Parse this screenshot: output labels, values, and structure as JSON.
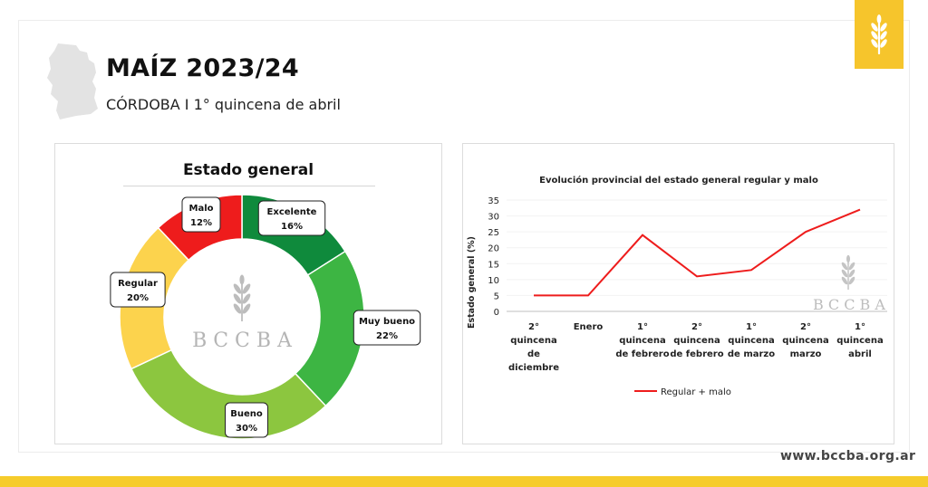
{
  "header": {
    "title": "MAÍZ 2023/24",
    "subtitle": "CÓRDOBA I 1° quincena de abril"
  },
  "footer": {
    "website": "www.bccba.org.ar"
  },
  "watermark": {
    "brand": "BCCBA",
    "brand_spaced": "B C C B A"
  },
  "colors": {
    "accent": "#f6cc2c",
    "excelente": "#0f8a3c",
    "muy_bueno": "#3db543",
    "bueno": "#8cc63f",
    "regular": "#fcd34d",
    "malo": "#ee1c1c",
    "line": "#ee1c1c"
  },
  "icons": {
    "logo": "wheat-icon",
    "map": "cordoba-map-icon"
  },
  "chart_data": [
    {
      "type": "pie",
      "title": "Estado general",
      "labels": [
        "Excelente",
        "Muy bueno",
        "Bueno",
        "Regular",
        "Malo"
      ],
      "values": [
        16,
        22,
        30,
        20,
        12
      ],
      "value_labels": [
        "16%",
        "22%",
        "30%",
        "20%",
        "12%"
      ]
    },
    {
      "type": "line",
      "title": "Evolución provincial del estado general regular y malo",
      "ylabel": "Estado general (%)",
      "xlabel": "",
      "ylim": [
        0,
        35
      ],
      "yticks": [
        "0",
        "5",
        "10",
        "15",
        "20",
        "25",
        "30",
        "35"
      ],
      "categories": [
        "2° quincena de diciembre",
        "Enero",
        "1° quincena de febrero",
        "2° quincena de febrero",
        "1° quincena de marzo",
        "2° quincena marzo",
        "1° quincena abril"
      ],
      "category_lines": [
        [
          "2°",
          "quincena",
          "de",
          "diciembre"
        ],
        [
          "Enero"
        ],
        [
          "1°",
          "quincena",
          "de febrero"
        ],
        [
          "2°",
          "quincena",
          "de febrero"
        ],
        [
          "1°",
          "quincena",
          "de marzo"
        ],
        [
          "2°",
          "quincena",
          "marzo"
        ],
        [
          "1°",
          "quincena",
          "abril"
        ]
      ],
      "series": [
        {
          "name": "Regular + malo",
          "values": [
            5,
            5,
            24,
            11,
            13,
            25,
            32
          ]
        }
      ],
      "legend": "bottom-center"
    }
  ]
}
